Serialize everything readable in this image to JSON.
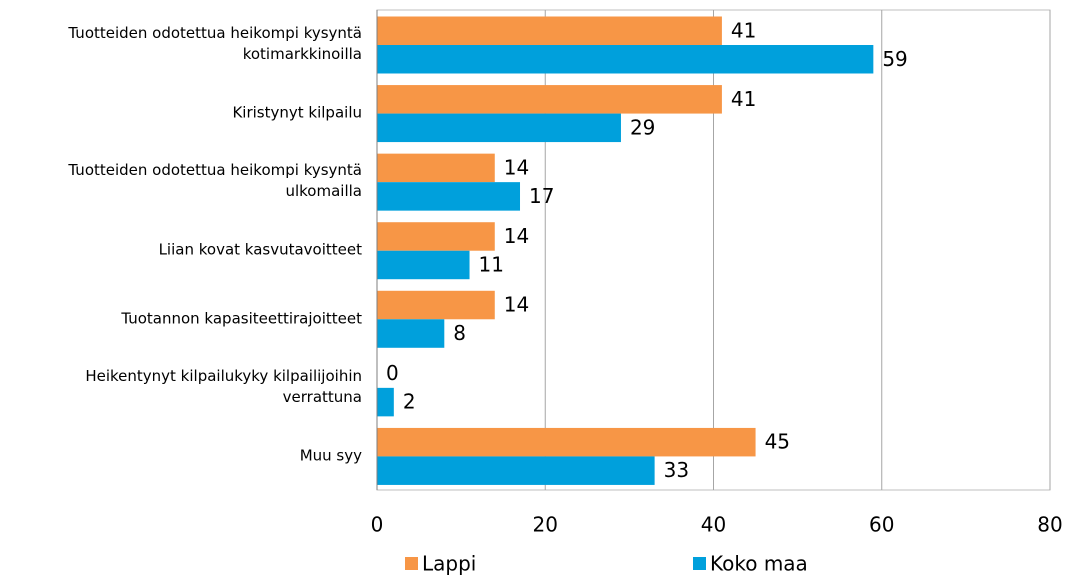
{
  "chart_data": {
    "type": "bar",
    "orientation": "horizontal",
    "categories": [
      "Tuotteiden odotettua heikompi kysyntä\nkotimarkkinoilla",
      "Kiristynyt kilpailu",
      "Tuotteiden odotettua heikompi kysyntä\nulkomailla",
      "Liian kovat kasvutavoitteet",
      "Tuotannon kapasiteettirajoitteet",
      "Heikentynyt kilpailukyky kilpailijoihin\nverrattuna",
      "Muu syy"
    ],
    "series": [
      {
        "name": "Lappi",
        "color": "#f79646",
        "values": [
          41,
          41,
          14,
          14,
          14,
          0,
          45
        ]
      },
      {
        "name": "Koko maa",
        "color": "#00a0dc",
        "values": [
          59,
          29,
          17,
          11,
          8,
          2,
          33
        ]
      }
    ],
    "xlim": [
      0,
      80
    ],
    "xticks": [
      0,
      20,
      40,
      60,
      80
    ],
    "grid": true,
    "legend": "bottom"
  }
}
